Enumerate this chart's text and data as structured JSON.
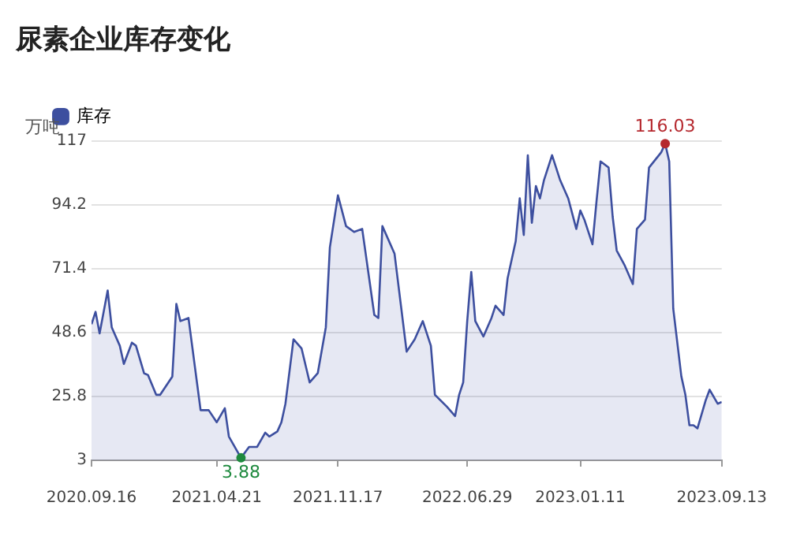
{
  "chart_data": {
    "type": "area",
    "title": "尿素企业库存变化",
    "ylabel": "万吨",
    "legend": "top left",
    "grid": "y",
    "marker": "none",
    "xlim": [
      "2020-09-16",
      "2023-09-13"
    ],
    "xticks": [
      {
        "value": "2020-09-16",
        "label": "2020.09.16"
      },
      {
        "value": "2021-04-21",
        "label": "2021.04.21"
      },
      {
        "value": "2021-11-17",
        "label": "2021.11.17"
      },
      {
        "value": "2022-06-29",
        "label": "2022.06.29"
      },
      {
        "value": "2023-01-11",
        "label": "2023.01.11"
      },
      {
        "value": "2023-09-13",
        "label": "2023.09.13"
      }
    ],
    "ylim": [
      3,
      117
    ],
    "yticks": [
      3,
      25.8,
      48.6,
      71.4,
      94.2,
      117
    ],
    "annotations": [
      {
        "text": "116.03",
        "x": "2023-06-07",
        "y": 116.03
      },
      {
        "text": "3.88",
        "x": "2021-06-02",
        "y": 3.88
      }
    ],
    "x": [
      "2020-09-16",
      "2020-09-23",
      "2020-09-30",
      "2020-10-14",
      "2020-10-21",
      "2020-11-04",
      "2020-11-11",
      "2020-11-25",
      "2020-12-02",
      "2020-12-16",
      "2020-12-23",
      "2021-01-06",
      "2021-01-13",
      "2021-02-03",
      "2021-02-10",
      "2021-02-17",
      "2021-03-03",
      "2021-03-24",
      "2021-04-07",
      "2021-04-21",
      "2021-05-05",
      "2021-05-12",
      "2021-06-02",
      "2021-06-16",
      "2021-06-30",
      "2021-07-14",
      "2021-07-21",
      "2021-08-04",
      "2021-08-11",
      "2021-08-18",
      "2021-09-01",
      "2021-09-15",
      "2021-09-29",
      "2021-10-13",
      "2021-10-27",
      "2021-11-03",
      "2021-11-17",
      "2021-12-01",
      "2021-12-15",
      "2021-12-29",
      "2022-01-19",
      "2022-01-26",
      "2022-02-02",
      "2022-02-23",
      "2022-03-16",
      "2022-03-30",
      "2022-04-13",
      "2022-04-27",
      "2022-05-04",
      "2022-05-25",
      "2022-06-08",
      "2022-06-15",
      "2022-06-22",
      "2022-06-29",
      "2022-07-06",
      "2022-07-13",
      "2022-07-27",
      "2022-08-10",
      "2022-08-17",
      "2022-08-31",
      "2022-09-07",
      "2022-09-21",
      "2022-09-28",
      "2022-10-05",
      "2022-10-12",
      "2022-10-19",
      "2022-10-26",
      "2022-11-02",
      "2022-11-09",
      "2022-11-23",
      "2022-12-07",
      "2022-12-21",
      "2023-01-04",
      "2023-01-11",
      "2023-01-18",
      "2023-02-01",
      "2023-02-08",
      "2023-02-15",
      "2023-03-01",
      "2023-03-08",
      "2023-03-15",
      "2023-03-29",
      "2023-04-12",
      "2023-04-19",
      "2023-05-03",
      "2023-05-10",
      "2023-05-31",
      "2023-06-07",
      "2023-06-14",
      "2023-06-21",
      "2023-07-05",
      "2023-07-12",
      "2023-07-19",
      "2023-07-26",
      "2023-08-02",
      "2023-08-16",
      "2023-08-23",
      "2023-09-06",
      "2023-09-13"
    ],
    "series": [
      {
        "name": "库存",
        "color": "#3d4f9f",
        "values": [
          51.6,
          56.0,
          48.3,
          63.6,
          50.5,
          43.9,
          37.4,
          45,
          43.9,
          34.1,
          33.4,
          26.4,
          26.4,
          32.9,
          58.8,
          52.7,
          53.8,
          20.9,
          20.9,
          16.6,
          21.6,
          11.5,
          3.88,
          7.8,
          7.8,
          12.9,
          11.5,
          13.3,
          16.6,
          23.2,
          46.2,
          42.9,
          30.8,
          34.1,
          50.5,
          79.0,
          97.6,
          86.6,
          84.5,
          85.6,
          54.9,
          53.8,
          86.6,
          76.8,
          41.8,
          46.2,
          52.7,
          43.9,
          26.4,
          22.1,
          18.8,
          26.4,
          30.8,
          52.7,
          70.2,
          52.7,
          47.2,
          53.8,
          58.2,
          54.9,
          68.0,
          81.2,
          96.5,
          83.4,
          111.9,
          87.8,
          100.9,
          96.5,
          103.0,
          111.9,
          103.0,
          96.5,
          85.6,
          92.2,
          88.9,
          80.1,
          95.4,
          109.7,
          107.5,
          90.0,
          77.9,
          72.5,
          65.9,
          85.6,
          88.9,
          107.5,
          112.9,
          116.03,
          109.7,
          57.1,
          33.0,
          26.4,
          15.5,
          15.5,
          14.4,
          24.3,
          28.2,
          23.2,
          23.8
        ]
      }
    ]
  }
}
